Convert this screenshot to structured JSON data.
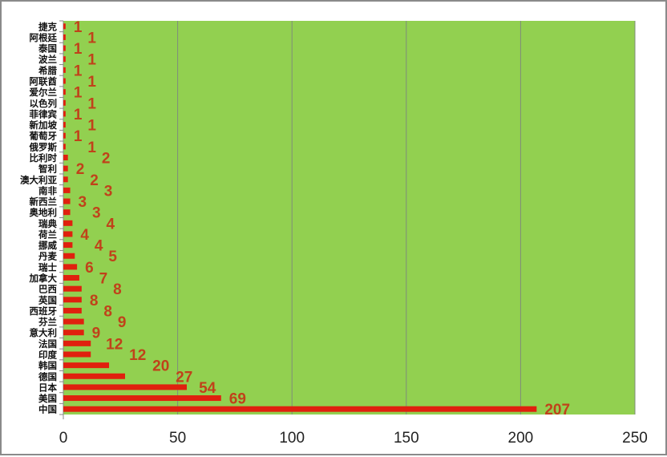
{
  "chart_data": {
    "type": "bar",
    "orientation": "horizontal",
    "categories": [
      "捷克",
      "阿根廷",
      "泰国",
      "波兰",
      "希腊",
      "阿联酋",
      "爱尔兰",
      "以色列",
      "菲律宾",
      "新加坡",
      "葡萄牙",
      "俄罗斯",
      "比利时",
      "智利",
      "澳大利亚",
      "南非",
      "新西兰",
      "奥地利",
      "瑞典",
      "荷兰",
      "挪威",
      "丹麦",
      "瑞士",
      "加拿大",
      "巴西",
      "英国",
      "西班牙",
      "芬兰",
      "意大利",
      "法国",
      "印度",
      "韩国",
      "德国",
      "日本",
      "美国",
      "中国"
    ],
    "values": [
      1,
      1,
      1,
      1,
      1,
      1,
      1,
      1,
      1,
      1,
      1,
      1,
      2,
      2,
      2,
      3,
      3,
      3,
      4,
      4,
      4,
      5,
      6,
      7,
      8,
      8,
      8,
      9,
      9,
      12,
      12,
      20,
      27,
      54,
      69,
      207
    ],
    "xlim": [
      0,
      250
    ],
    "xticks": [
      "0",
      "50",
      "100",
      "150",
      "200",
      "250"
    ],
    "grid": true,
    "data_labels": true,
    "title": "",
    "xlabel": "",
    "ylabel": "",
    "colors": {
      "plot_background": "#92D050",
      "bar": "#E0200E",
      "data_label": "#C0421A",
      "grid": "#7f8c7a"
    }
  }
}
